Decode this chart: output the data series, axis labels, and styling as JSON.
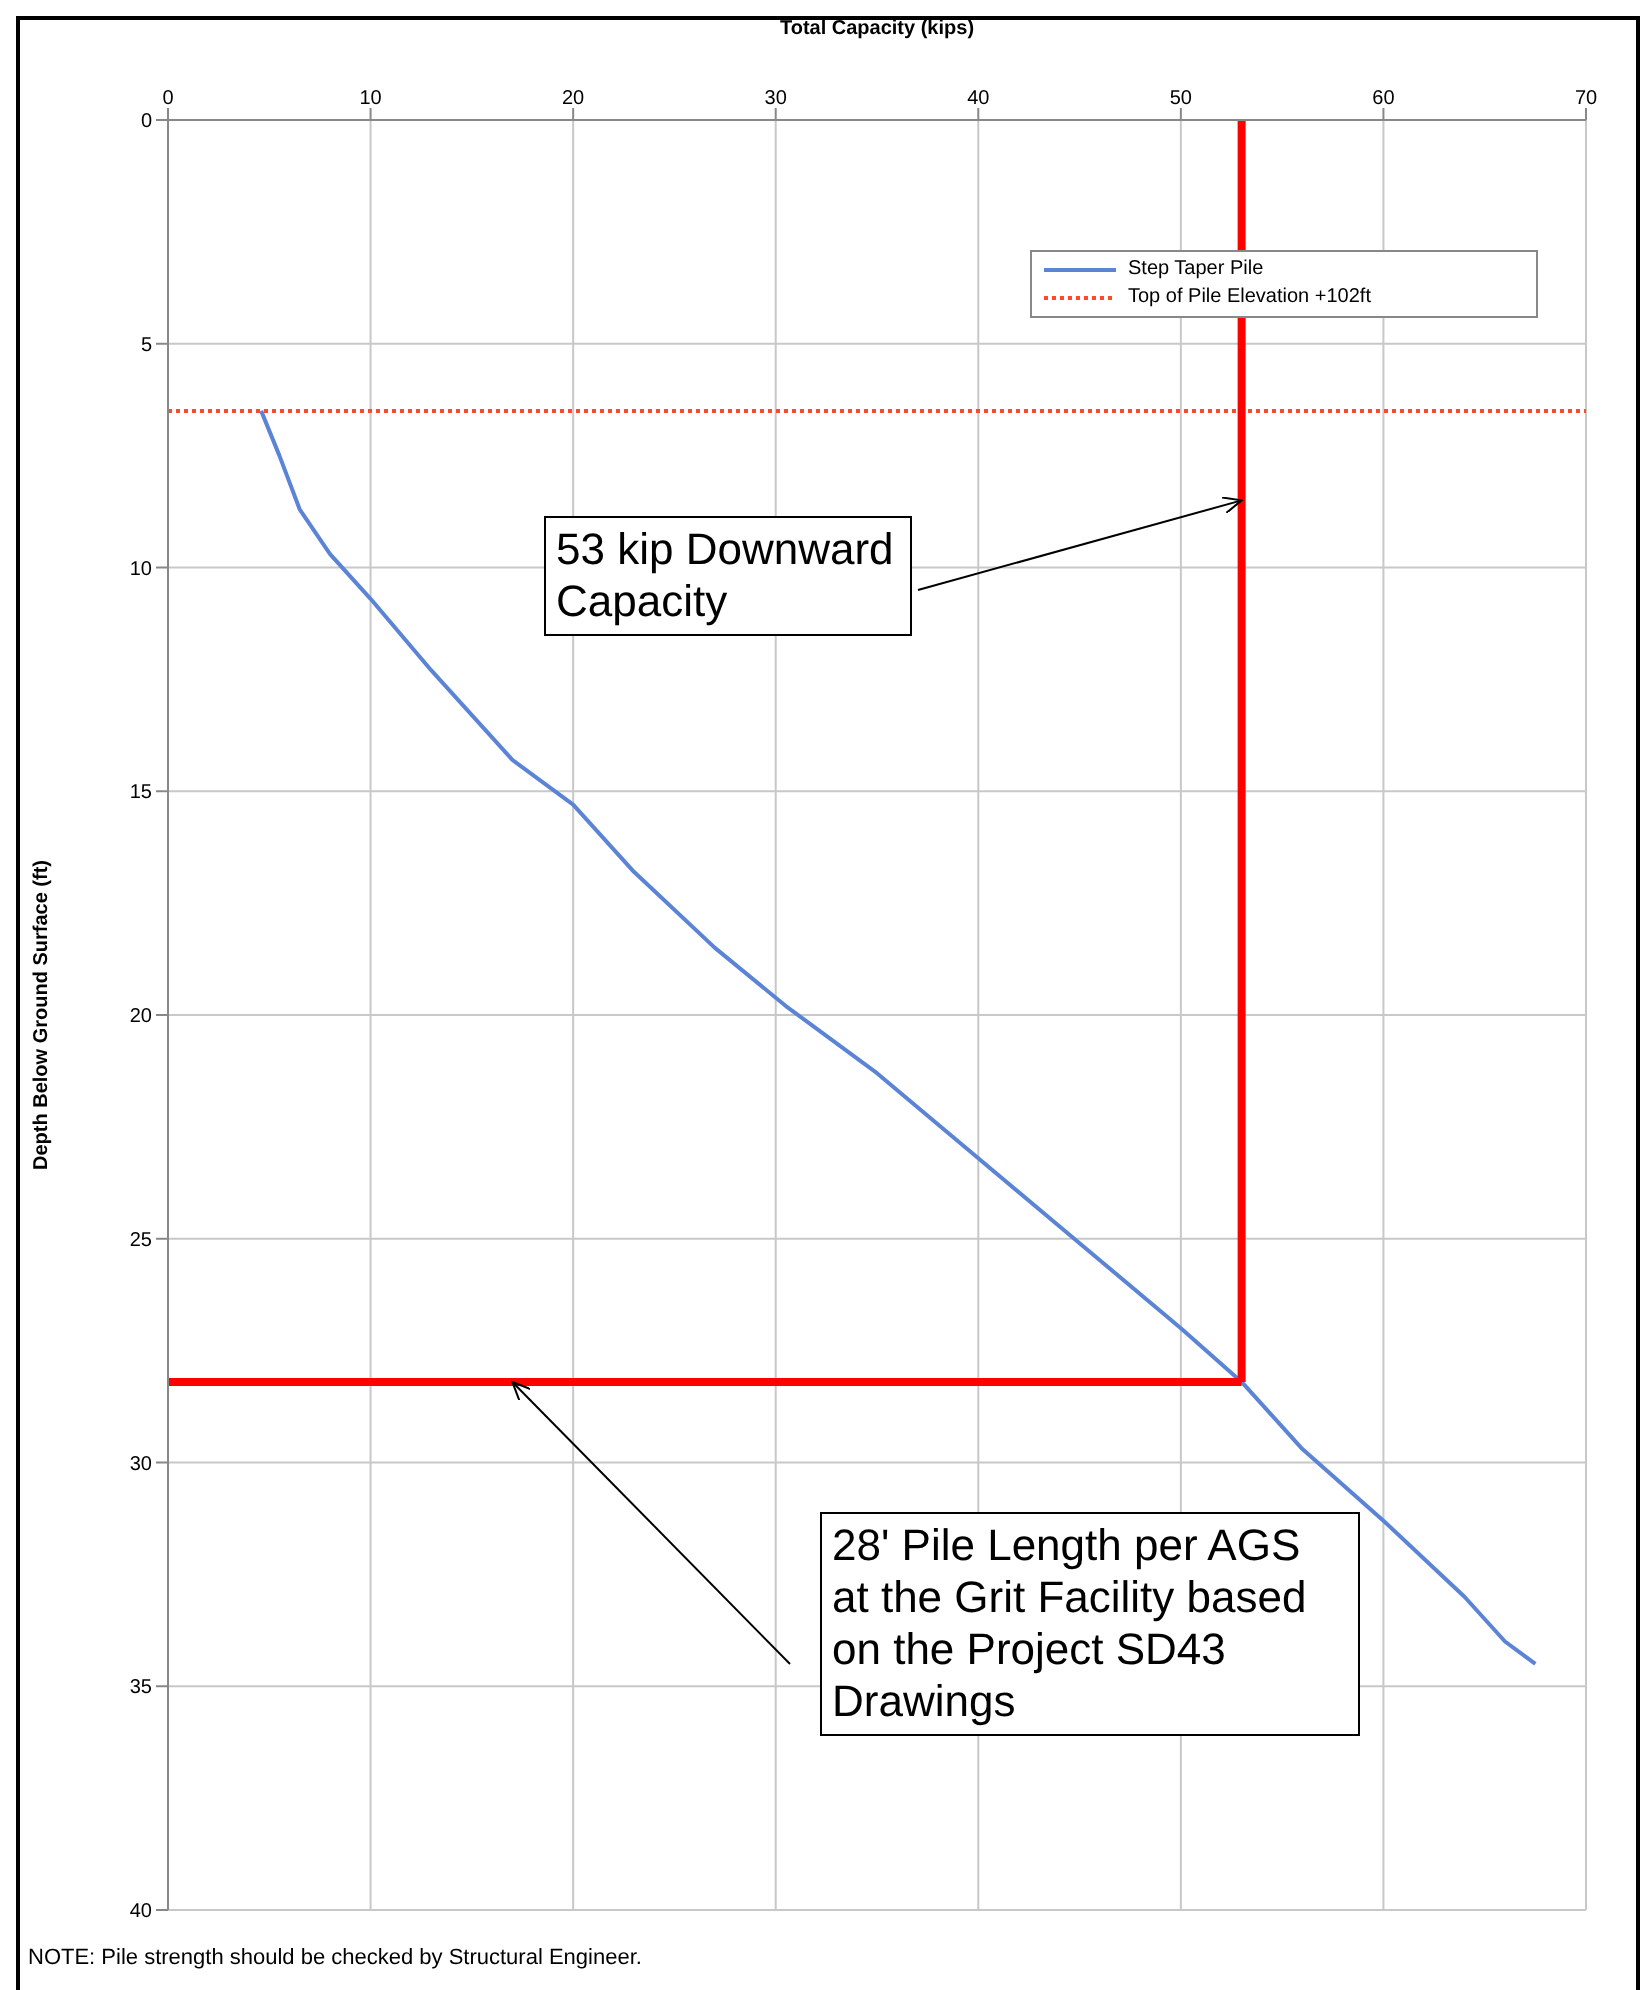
{
  "chart_data": {
    "type": "line",
    "xlabel": "Total Capacity  (kips)",
    "ylabel": "Depth Below Ground Surface (ft)",
    "xlim": [
      0,
      70
    ],
    "xticks": [
      0,
      10,
      20,
      30,
      40,
      50,
      60,
      70
    ],
    "ylim": [
      40,
      0
    ],
    "yticks": [
      0,
      5,
      10,
      15,
      20,
      25,
      30,
      35,
      40
    ],
    "grid": true,
    "legend": "top right",
    "marker": "none",
    "series": [
      {
        "name": "Step Taper Pile",
        "color": "#5b84d6",
        "line_style": "solid",
        "x": [
          4.6,
          5.5,
          6.5,
          8,
          10,
          13,
          17,
          20,
          23,
          27,
          30.5,
          35,
          40,
          45,
          50,
          53,
          56,
          60,
          64,
          66,
          67.5
        ],
        "values": [
          6.5,
          7.5,
          8.7,
          9.7,
          10.7,
          12.3,
          14.3,
          15.3,
          16.8,
          18.5,
          19.8,
          21.3,
          23.2,
          25.1,
          27,
          28.2,
          29.7,
          31.3,
          33,
          34,
          34.5
        ]
      },
      {
        "name": "Top of Pile Elevation +102ft",
        "color": "#ff4a2a",
        "line_style": "dotted",
        "x": [
          0,
          70
        ],
        "values": [
          6.5,
          6.5
        ]
      },
      {
        "color": "#ff0000",
        "line_style": "solid",
        "x": [
          53,
          53
        ],
        "values": [
          0,
          28.2
        ]
      },
      {
        "color": "#ff0000",
        "line_style": "solid",
        "x": [
          0,
          53
        ],
        "values": [
          28.2,
          28.2
        ]
      }
    ],
    "annotations": [
      {
        "text": "53 kip Downward Capacity",
        "x": 53,
        "y": 8.5
      },
      {
        "text": "28' Pile Length per AGS at the Grit Facility based on the Project SD43 Drawings",
        "x": 17,
        "y": 28.2
      },
      "NOTE: Pile strength should be checked by Structural Engineer."
    ]
  }
}
